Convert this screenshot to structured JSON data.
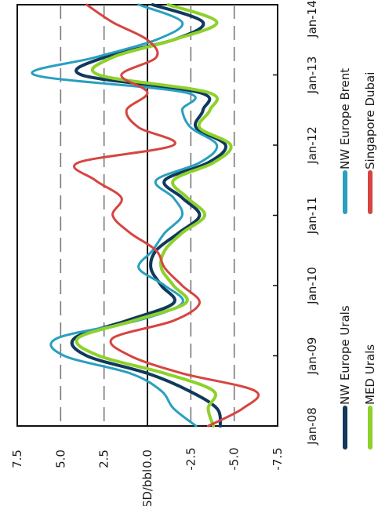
{
  "chart_data": {
    "type": "line",
    "ylabel": "USD/bbl",
    "ylim": [
      -7.5,
      7.5
    ],
    "yticks": [
      7.5,
      5.0,
      2.5,
      0.0,
      -2.5,
      -5.0,
      -7.5
    ],
    "ytick_labels": [
      "7.5",
      "5.0",
      "2.5",
      "0.0",
      "-2.5",
      "-5.0",
      "-7.5"
    ],
    "xlim": [
      "Jan-08",
      "Jan-14"
    ],
    "xtick_labels": [
      "Jan-08",
      "Jan-09",
      "Jan-10",
      "Jan-11",
      "Jan-12",
      "Jan-13",
      "Jan-14"
    ],
    "grid": "dashed horizontal at ±2.5 and ±5.0",
    "legend": "bottom",
    "x": [
      2008.0,
      2008.25,
      2008.5,
      2008.75,
      2009.0,
      2009.25,
      2009.5,
      2009.75,
      2010.0,
      2010.25,
      2010.5,
      2010.75,
      2011.0,
      2011.25,
      2011.5,
      2011.75,
      2012.0,
      2012.25,
      2012.5,
      2012.75,
      2013.0,
      2013.25,
      2013.5,
      2013.75,
      2014.0
    ],
    "series": [
      {
        "name": "NW Europe Urals",
        "color": "#10395c",
        "values": [
          -4.2,
          -4.0,
          -2.4,
          0.0,
          3.5,
          4.2,
          1.2,
          -1.5,
          -0.8,
          -0.2,
          -0.5,
          -1.8,
          -3.0,
          -2.0,
          -1.0,
          -3.5,
          -4.5,
          -2.8,
          -3.2,
          -3.0,
          3.8,
          2.5,
          -1.5,
          -3.2,
          -0.3
        ]
      },
      {
        "name": "NW Europe Brent",
        "color": "#2a9fbf",
        "values": [
          -2.8,
          -1.5,
          -0.8,
          1.0,
          4.8,
          5.2,
          0.6,
          -2.0,
          -1.0,
          0.5,
          -0.3,
          -1.0,
          -2.0,
          -1.5,
          -0.5,
          -3.0,
          -4.0,
          -2.5,
          -2.0,
          -2.2,
          6.5,
          3.0,
          -0.5,
          -2.0,
          0.5
        ]
      },
      {
        "name": "MED Urals",
        "color": "#8ed12b",
        "values": [
          -3.8,
          -3.5,
          -3.8,
          -1.0,
          2.8,
          4.0,
          0.8,
          -2.2,
          -1.5,
          -0.8,
          -1.0,
          -2.0,
          -3.3,
          -2.3,
          -1.5,
          -3.8,
          -4.8,
          -3.0,
          -3.6,
          -3.5,
          2.8,
          2.0,
          -1.5,
          -4.0,
          -1.2
        ]
      },
      {
        "name": "Singapore Dubai",
        "color": "#d64541",
        "values": [
          -3.5,
          -5.5,
          -6.2,
          -2.0,
          1.0,
          2.0,
          -1.5,
          -3.0,
          -2.0,
          -1.0,
          -0.5,
          1.0,
          2.0,
          1.5,
          3.0,
          4.0,
          -1.5,
          0.5,
          1.2,
          0.0,
          1.5,
          -0.5,
          0.0,
          2.0,
          3.5
        ]
      }
    ]
  }
}
